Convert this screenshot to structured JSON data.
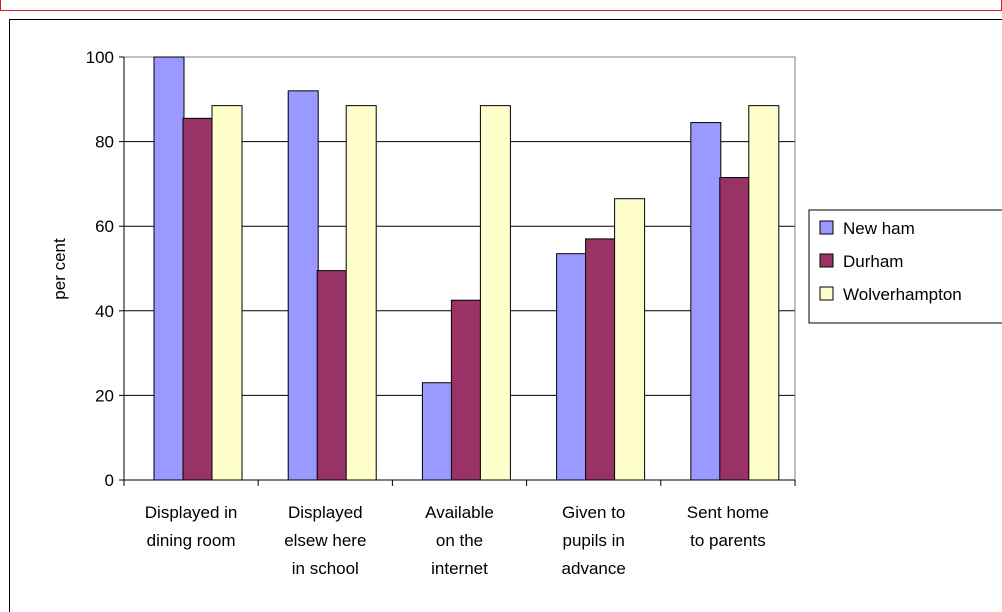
{
  "chart_data": {
    "type": "bar",
    "ylabel": "per cent",
    "ylim": [
      0,
      100
    ],
    "yticks": [
      0,
      20,
      40,
      60,
      80,
      100
    ],
    "grid": true,
    "legend_position": "right",
    "categories": [
      [
        "Displayed in",
        "dining room"
      ],
      [
        "Displayed",
        "elsew here",
        "in school"
      ],
      [
        "Available",
        "on the",
        "internet"
      ],
      [
        "Given to",
        "pupils in",
        "advance"
      ],
      [
        "Sent home",
        "to parents"
      ]
    ],
    "series": [
      {
        "name": "New ham",
        "color": "#9999FF",
        "values": [
          100,
          92,
          23,
          53.5,
          84.5
        ]
      },
      {
        "name": "Durham",
        "color": "#993366",
        "values": [
          85.5,
          49.5,
          42.5,
          57,
          71.5
        ]
      },
      {
        "name": "Wolverhampton",
        "color": "#FFFFCC",
        "values": [
          88.5,
          88.5,
          88.5,
          66.5,
          88.5
        ]
      }
    ]
  }
}
